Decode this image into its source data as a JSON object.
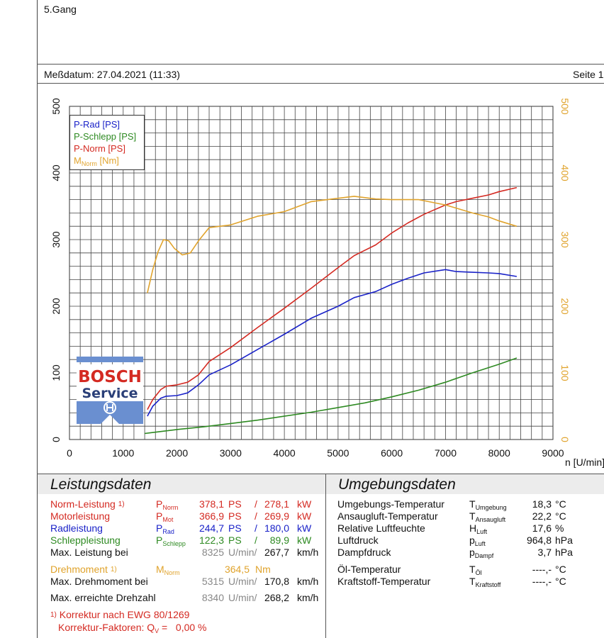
{
  "header": {
    "gear": "5.Gang",
    "date_label": "Meßdatum: 27.04.2021 (11:33)",
    "page_label": "Seite 1"
  },
  "legend": {
    "items": [
      {
        "label": "P-Rad [PS]",
        "color": "#1a22c8"
      },
      {
        "label": "P-Schlepp [PS]",
        "color": "#2e8a22"
      },
      {
        "label": "P-Norm [PS]",
        "color": "#d42a22"
      },
      {
        "label": "M",
        "sub": "Norm",
        "unit": " [Nm]",
        "color": "#e0a32c"
      }
    ]
  },
  "logo": {
    "line1": "BOSCH",
    "line2": "Service",
    "color": "#6a8fd0"
  },
  "chart_data": {
    "type": "line",
    "xlabel": "n [U/min]",
    "xlim": [
      0,
      9000
    ],
    "x_ticks": [
      0,
      1000,
      2000,
      3000,
      4000,
      5000,
      6000,
      7000,
      8000,
      9000
    ],
    "ylim": [
      0,
      500
    ],
    "y_ticks": [
      0,
      100,
      200,
      300,
      400,
      500
    ],
    "y2lim": [
      0,
      500
    ],
    "y2_ticks": [
      0,
      100,
      200,
      300,
      400,
      500
    ],
    "grid": true,
    "legend_position": "top-left",
    "series": [
      {
        "name": "P-Rad [PS]",
        "color": "#1a22c8",
        "axis": "left",
        "x": [
          1450,
          1550,
          1700,
          1800,
          2000,
          2200,
          2400,
          2600,
          3000,
          3500,
          4000,
          4500,
          5000,
          5300,
          5700,
          6000,
          6300,
          6600,
          7000,
          7200,
          7500,
          7800,
          8000,
          8325
        ],
        "y": [
          35,
          50,
          62,
          65,
          66,
          70,
          82,
          97,
          112,
          135,
          158,
          182,
          200,
          213,
          222,
          233,
          242,
          250,
          255,
          252,
          251,
          250,
          249,
          244.7
        ]
      },
      {
        "name": "P-Schlepp [PS]",
        "color": "#2e8a22",
        "axis": "left",
        "x": [
          1400,
          1500,
          2000,
          2500,
          3000,
          3500,
          4000,
          4500,
          5000,
          5500,
          6000,
          6500,
          7000,
          7500,
          8000,
          8325
        ],
        "y": [
          9,
          10,
          15,
          19,
          24,
          29,
          35,
          41,
          48,
          55,
          64,
          74,
          86,
          100,
          113,
          122.3
        ]
      },
      {
        "name": "P-Norm [PS]",
        "color": "#d42a22",
        "axis": "left",
        "x": [
          1450,
          1550,
          1700,
          1800,
          2000,
          2200,
          2400,
          2600,
          3000,
          3500,
          4000,
          4500,
          5000,
          5300,
          5700,
          6000,
          6300,
          6600,
          7000,
          7200,
          7500,
          7800,
          8000,
          8325
        ],
        "y": [
          45,
          60,
          75,
          80,
          82,
          86,
          97,
          117,
          138,
          168,
          197,
          227,
          258,
          276,
          292,
          310,
          325,
          338,
          352,
          357,
          362,
          367,
          372,
          378.1
        ]
      },
      {
        "name": "M Norm [Nm]",
        "color": "#e0a32c",
        "axis": "right",
        "x": [
          1450,
          1550,
          1650,
          1750,
          1850,
          1950,
          2100,
          2250,
          2400,
          2600,
          3000,
          3500,
          4000,
          4500,
          5000,
          5300,
          5700,
          6000,
          6500,
          7000,
          7500,
          7800,
          8000,
          8325
        ],
        "y": [
          220,
          255,
          282,
          300,
          298,
          287,
          277,
          280,
          298,
          318,
          322,
          335,
          342,
          357,
          362,
          365,
          361,
          360,
          360,
          352,
          340,
          334,
          328,
          320
        ]
      }
    ]
  },
  "leistung": {
    "title": "Leistungsdaten",
    "rows": [
      {
        "label": "Norm-Leistung",
        "note": "1)",
        "sym": "P",
        "sub": "Norm",
        "v1": "378,1",
        "u1": "PS",
        "sep": "/",
        "v2": "278,1",
        "u2": "kW",
        "color": "red"
      },
      {
        "label": "Motorleistung",
        "note": "",
        "sym": "P",
        "sub": "Mot",
        "v1": "366,9",
        "u1": "PS",
        "sep": "/",
        "v2": "269,9",
        "u2": "kW",
        "color": "red"
      },
      {
        "label": "Radleistung",
        "note": "",
        "sym": "P",
        "sub": "Rad",
        "v1": "244,7",
        "u1": "PS",
        "sep": "/",
        "v2": "180,0",
        "u2": "kW",
        "color": "blue"
      },
      {
        "label": "Schleppleistung",
        "note": "",
        "sym": "P",
        "sub": "Schlepp",
        "v1": "122,3",
        "u1": "PS",
        "sep": "/",
        "v2": "89,9",
        "u2": "kW",
        "color": "green"
      }
    ],
    "max_leistung": {
      "label": "Max. Leistung bei",
      "rpm": "8325",
      "rpm_unit": "U/min/",
      "speed": "267,7",
      "speed_unit": "km/h"
    },
    "drehmoment": {
      "label": "Drehmoment",
      "note": "1)",
      "sym": "M",
      "sub": "Norm",
      "value": "364,5",
      "unit": "Nm"
    },
    "max_drehmoment": {
      "label": "Max. Drehmoment bei",
      "rpm": "5315",
      "rpm_unit": "U/min/",
      "speed": "170,8",
      "speed_unit": "km/h"
    },
    "max_drehzahl": {
      "label": "Max. erreichte Drehzahl",
      "rpm": "8340",
      "rpm_unit": "U/min/",
      "speed": "268,2",
      "speed_unit": "km/h"
    },
    "footnote1_mark": "1)",
    "footnote1": "Korrektur nach EWG 80/1269",
    "footnote2_pre": "Korrektur-Faktoren: Q",
    "footnote2_sub": "V",
    "footnote2_post": " =   0,00 %"
  },
  "umgebung": {
    "title": "Umgebungsdaten",
    "rows": [
      {
        "label": "Umgebungs-Temperatur",
        "sym": "T",
        "sub": "Umgebung",
        "value": "18,3",
        "unit": "°C"
      },
      {
        "label": "Ansaugluft-Temperatur",
        "sym": "T",
        "sub": "Ansaugluft",
        "value": "22,2",
        "unit": "°C"
      },
      {
        "label": "Relative Luftfeuchte",
        "sym": "H",
        "sub": "Luft",
        "value": "17,6",
        "unit": "%"
      },
      {
        "label": "Luftdruck",
        "sym": "p",
        "sub": "Luft",
        "value": "964,8",
        "unit": "hPa"
      },
      {
        "label": "Dampfdruck",
        "sym": "p",
        "sub": "Dampf",
        "value": "3,7",
        "unit": "hPa"
      },
      {
        "label": "Öl-Temperatur",
        "sym": "T",
        "sub": "Öl",
        "value": "----,-",
        "unit": "°C"
      },
      {
        "label": "Kraftstoff-Temperatur",
        "sym": "T",
        "sub": "Kraftstoff",
        "value": "----,-",
        "unit": "°C"
      }
    ]
  }
}
